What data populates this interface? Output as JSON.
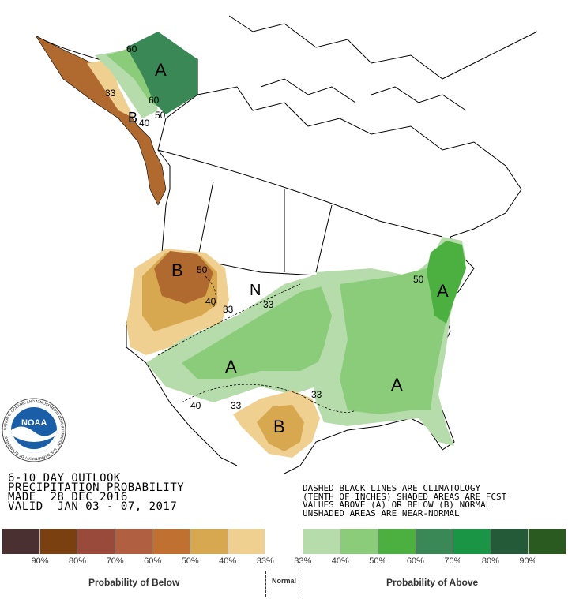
{
  "outlook": {
    "line1": "6-10 DAY OUTLOOK",
    "line2": "PRECIPITATION PROBABILITY",
    "line3": "MADE  28 DEC 2016",
    "line4": "VALID  JAN 03 - 07, 2017"
  },
  "notes": {
    "line1": "DASHED BLACK LINES ARE CLIMATOLOGY",
    "line2": "(TENTH OF INCHES) SHADED AREAS ARE FCST",
    "line3": "VALUES ABOVE (A) OR BELOW (B) NORMAL",
    "line4": "UNSHADED AREAS ARE NEAR-NORMAL"
  },
  "map_labels": {
    "a_alaska": "A",
    "b_alaska": "B",
    "b_northwest": "B",
    "n_central": "N",
    "a_southwest": "A",
    "b_texas": "B",
    "a_northeast": "A",
    "a_southeast": "A",
    "c60a": "60",
    "c60b": "60",
    "c50a": "50",
    "c40a": "40",
    "c33a": "33",
    "c50b": "50",
    "c40b": "40",
    "c33b": "33",
    "c33c": "33",
    "c40c": "40",
    "c33d": "33",
    "c33e": "33",
    "c50c": "50"
  },
  "legend": {
    "colors": [
      "#4a3030",
      "#7a4010",
      "#9a4a3a",
      "#b06040",
      "#c07030",
      "#d8a850",
      "#f0d090",
      "#ffffff",
      "#b5dcaa",
      "#8acc7a",
      "#4cb040",
      "#3a8855",
      "#1a9445",
      "#245a38",
      "#2a5a20"
    ],
    "labels": [
      "90%",
      "80%",
      "70%",
      "60%",
      "50%",
      "40%",
      "33%",
      "33%",
      "40%",
      "50%",
      "60%",
      "70%",
      "80%",
      "90%"
    ],
    "below_caption": "Probability of Below",
    "normal_caption": "Normal",
    "above_caption": "Probability of Above"
  },
  "logo": {
    "text": "NOAA",
    "ring_text": "NATIONAL OCEANIC AND ATMOSPHERIC ADMINISTRATION · U.S. DEPARTMENT OF COMMERCE"
  }
}
